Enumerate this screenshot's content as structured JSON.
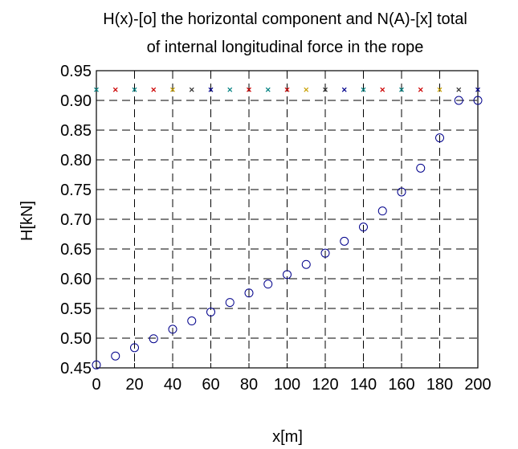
{
  "chart_data": {
    "type": "scatter",
    "title_lines": [
      "H(x)-[o] the horizontal component and N(A)-[x] total",
      "of internal longitudinal force in the rope"
    ],
    "xlabel": "x[m]",
    "ylabel": "H[kN]",
    "xlim": [
      0,
      200
    ],
    "ylim": [
      0.45,
      0.95
    ],
    "xticks": [
      0,
      20,
      40,
      60,
      80,
      100,
      120,
      140,
      160,
      180,
      200
    ],
    "yticks": [
      "0.45",
      "0.50",
      "0.55",
      "0.60",
      "0.65",
      "0.70",
      "0.75",
      "0.80",
      "0.85",
      "0.90",
      "0.95"
    ],
    "grid": true,
    "grid_style": "dashed",
    "series": [
      {
        "marker": "o",
        "color": "#00008b",
        "x": [
          0,
          10,
          20,
          30,
          40,
          50,
          60,
          70,
          80,
          90,
          100,
          110,
          120,
          130,
          140,
          150,
          160,
          170,
          180,
          190,
          200
        ],
        "y": [
          0.455,
          0.47,
          0.484,
          0.499,
          0.515,
          0.529,
          0.544,
          0.56,
          0.576,
          0.591,
          0.607,
          0.624,
          0.643,
          0.663,
          0.687,
          0.714,
          0.746,
          0.786,
          0.837,
          0.9,
          0.9
        ]
      },
      {
        "marker": "x",
        "x": [
          0,
          10,
          20,
          30,
          40,
          50,
          60,
          70,
          80,
          90,
          100,
          110,
          120,
          130,
          140,
          150,
          160,
          170,
          180,
          190,
          200
        ],
        "y": [
          0.918,
          0.918,
          0.918,
          0.918,
          0.918,
          0.918,
          0.918,
          0.918,
          0.918,
          0.918,
          0.918,
          0.918,
          0.918,
          0.918,
          0.918,
          0.918,
          0.918,
          0.918,
          0.918,
          0.918,
          0.918
        ],
        "colors": [
          "#008080",
          "#cc0000",
          "#008080",
          "#cc0000",
          "#c8a000",
          "#333333",
          "#00008b",
          "#008080",
          "#cc0000",
          "#008080",
          "#cc0000",
          "#c8a000",
          "#333333",
          "#00008b",
          "#008080",
          "#cc0000",
          "#008080",
          "#cc0000",
          "#c8a000",
          "#333333",
          "#00008b"
        ]
      }
    ]
  }
}
